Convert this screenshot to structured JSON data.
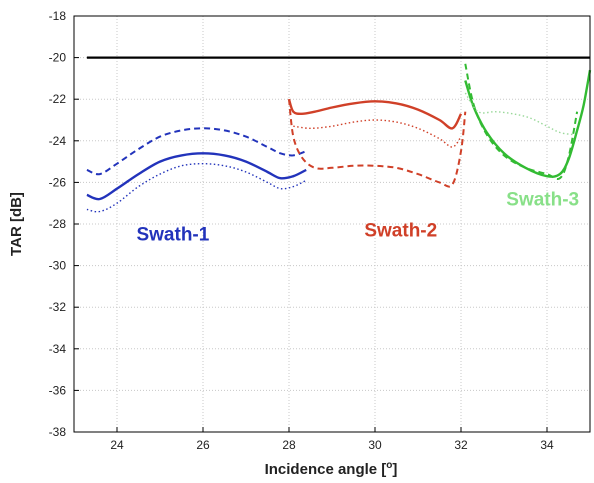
{
  "chart_data": {
    "type": "line",
    "xlabel": "Incidence angle [",
    "xlabel_sup": "o",
    "xlabel_end": "]",
    "ylabel": "TAR [dB]",
    "xlim": [
      23.0,
      35.0
    ],
    "ylim": [
      -38,
      -18
    ],
    "xticks": [
      24,
      26,
      28,
      30,
      32,
      34
    ],
    "yticks": [
      -18,
      -20,
      -22,
      -24,
      -26,
      -28,
      -30,
      -32,
      -34,
      -36,
      -38
    ],
    "grid": true,
    "reference_line": {
      "y": -20,
      "color": "#000000"
    },
    "annotations": [
      {
        "text": "Swath-1",
        "x": 25.3,
        "y": -28.8,
        "color": "#2233bb"
      },
      {
        "text": "Swath-2",
        "x": 30.6,
        "y": -28.6,
        "color": "#d04028"
      },
      {
        "text": "Swath-3",
        "x": 33.9,
        "y": -27.1,
        "color": "#88e088"
      }
    ],
    "series": [
      {
        "group": "swath-1",
        "style": "solid",
        "color": "#2233bb",
        "x": [
          23.3,
          23.6,
          24.0,
          24.5,
          25.0,
          25.5,
          26.0,
          26.5,
          27.0,
          27.5,
          27.8,
          28.1,
          28.4
        ],
        "y": [
          -26.6,
          -26.8,
          -26.3,
          -25.6,
          -25.0,
          -24.7,
          -24.6,
          -24.7,
          -25.0,
          -25.5,
          -25.8,
          -25.7,
          -25.4
        ]
      },
      {
        "group": "swath-1",
        "style": "dashed",
        "color": "#2233bb",
        "x": [
          23.3,
          23.6,
          24.0,
          24.5,
          25.0,
          25.5,
          26.0,
          26.5,
          27.0,
          27.5,
          27.8,
          28.1,
          28.4
        ],
        "y": [
          -25.4,
          -25.6,
          -25.1,
          -24.4,
          -23.8,
          -23.5,
          -23.4,
          -23.5,
          -23.8,
          -24.3,
          -24.6,
          -24.7,
          -24.5
        ]
      },
      {
        "group": "swath-1",
        "style": "dotted",
        "color": "#2233bb",
        "x": [
          23.3,
          23.6,
          24.0,
          24.5,
          25.0,
          25.5,
          26.0,
          26.5,
          27.0,
          27.5,
          27.8,
          28.1,
          28.4
        ],
        "y": [
          -27.3,
          -27.4,
          -27.0,
          -26.2,
          -25.6,
          -25.2,
          -25.1,
          -25.2,
          -25.5,
          -26.0,
          -26.3,
          -26.2,
          -25.9
        ]
      },
      {
        "group": "swath-2",
        "style": "solid",
        "color": "#d04028",
        "x": [
          28.0,
          28.1,
          28.3,
          28.6,
          29.0,
          29.5,
          30.0,
          30.5,
          31.0,
          31.5,
          31.8,
          32.0
        ],
        "y": [
          -22.0,
          -22.6,
          -22.7,
          -22.6,
          -22.4,
          -22.2,
          -22.1,
          -22.2,
          -22.5,
          -23.0,
          -23.4,
          -22.7
        ]
      },
      {
        "group": "swath-2",
        "style": "dashed",
        "color": "#d04028",
        "x": [
          28.0,
          28.1,
          28.3,
          28.6,
          29.0,
          29.5,
          30.0,
          30.5,
          31.0,
          31.5,
          31.8,
          32.0,
          32.1
        ],
        "y": [
          -22.0,
          -23.8,
          -24.8,
          -25.3,
          -25.3,
          -25.2,
          -25.2,
          -25.3,
          -25.6,
          -26.0,
          -26.1,
          -24.5,
          -22.6
        ]
      },
      {
        "group": "swath-2",
        "style": "dotted",
        "color": "#d04028",
        "x": [
          28.1,
          28.5,
          29.0,
          29.5,
          30.0,
          30.5,
          31.0,
          31.5,
          31.8,
          32.0
        ],
        "y": [
          -23.3,
          -23.4,
          -23.3,
          -23.1,
          -23.0,
          -23.1,
          -23.4,
          -23.9,
          -24.3,
          -23.8
        ]
      },
      {
        "group": "swath-3",
        "style": "solid",
        "color": "#33bb33",
        "x": [
          32.1,
          32.3,
          32.6,
          33.0,
          33.5,
          34.0,
          34.3,
          34.5,
          34.7,
          34.85,
          35.0
        ],
        "y": [
          -21.1,
          -22.4,
          -23.6,
          -24.6,
          -25.3,
          -25.7,
          -25.6,
          -24.9,
          -23.5,
          -22.3,
          -20.6
        ]
      },
      {
        "group": "swath-3",
        "style": "dashed",
        "color": "#33bb33",
        "x": [
          32.1,
          32.3,
          32.6,
          33.0,
          33.5,
          34.0,
          34.3,
          34.5,
          34.7
        ],
        "y": [
          -20.3,
          -22.3,
          -23.7,
          -24.7,
          -25.3,
          -25.6,
          -25.8,
          -24.8,
          -22.6
        ]
      },
      {
        "group": "swath-3",
        "style": "dotted",
        "color": "#9ad89a",
        "x": [
          32.1,
          32.4,
          32.8,
          33.2,
          33.6,
          34.0,
          34.3,
          34.6
        ],
        "y": [
          -21.7,
          -22.6,
          -22.6,
          -22.7,
          -22.9,
          -23.3,
          -23.6,
          -23.7
        ]
      }
    ]
  }
}
